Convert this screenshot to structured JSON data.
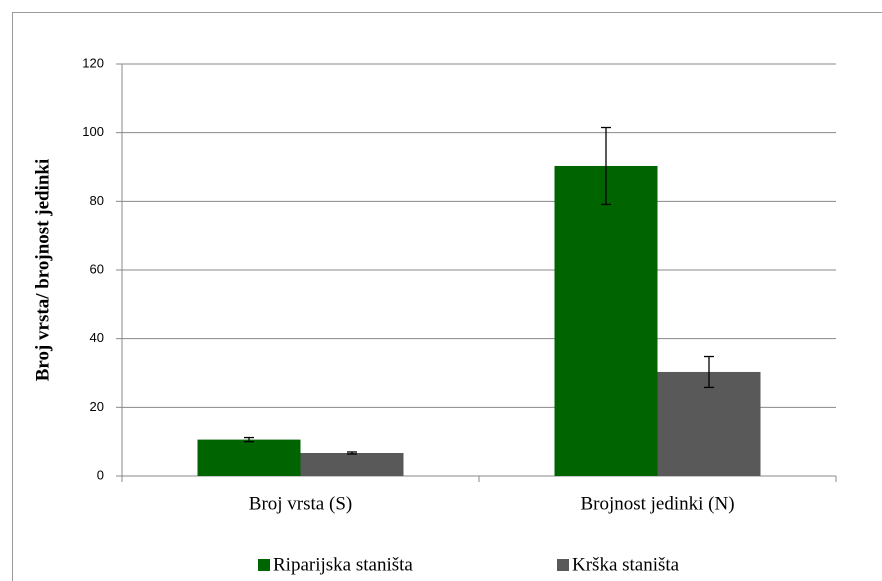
{
  "chart_data": {
    "type": "bar",
    "y_label": "Broj vrsta/ brojnost jedinki",
    "categories": [
      "Broj vrsta (S)",
      "Brojnost jedinki (N)"
    ],
    "series": [
      {
        "name": "Riparijska staništa",
        "color": "#006400",
        "values": [
          10.6,
          90.3
        ],
        "errors": [
          0.6,
          11.2
        ]
      },
      {
        "name": "Krška staništa",
        "color": "#595959",
        "values": [
          6.7,
          30.3
        ],
        "errors": [
          0.3,
          4.5
        ]
      }
    ],
    "ylim": [
      0,
      120
    ],
    "yticks": [
      0,
      20,
      40,
      60,
      80,
      100,
      120
    ],
    "grid": true,
    "legend": "bottom"
  }
}
